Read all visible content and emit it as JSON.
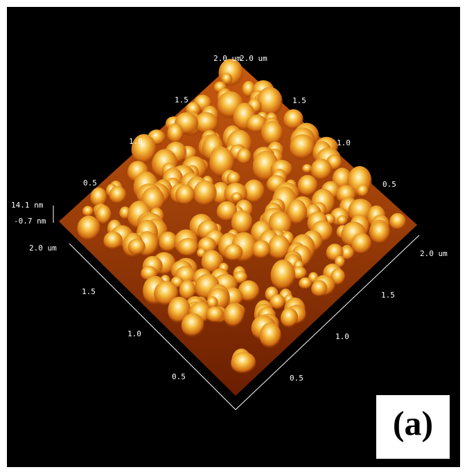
{
  "top_labels": [
    "2.0 um",
    "2.0 um"
  ],
  "back_left_axis": [
    "1.5",
    "1.0",
    "0.5"
  ],
  "back_right_axis": [
    "1.5",
    "1.0",
    "0.5"
  ],
  "z_axis": [
    "14.1 nm",
    "-0.7 nm"
  ],
  "front_left_axis": {
    "end": "2.0 um",
    "ticks": [
      "1.5",
      "1.0",
      "0.5"
    ]
  },
  "front_right_axis": {
    "end": "2.0 um",
    "ticks": [
      "1.5",
      "1.0",
      "0.5"
    ]
  },
  "panel_label": "(a)"
}
